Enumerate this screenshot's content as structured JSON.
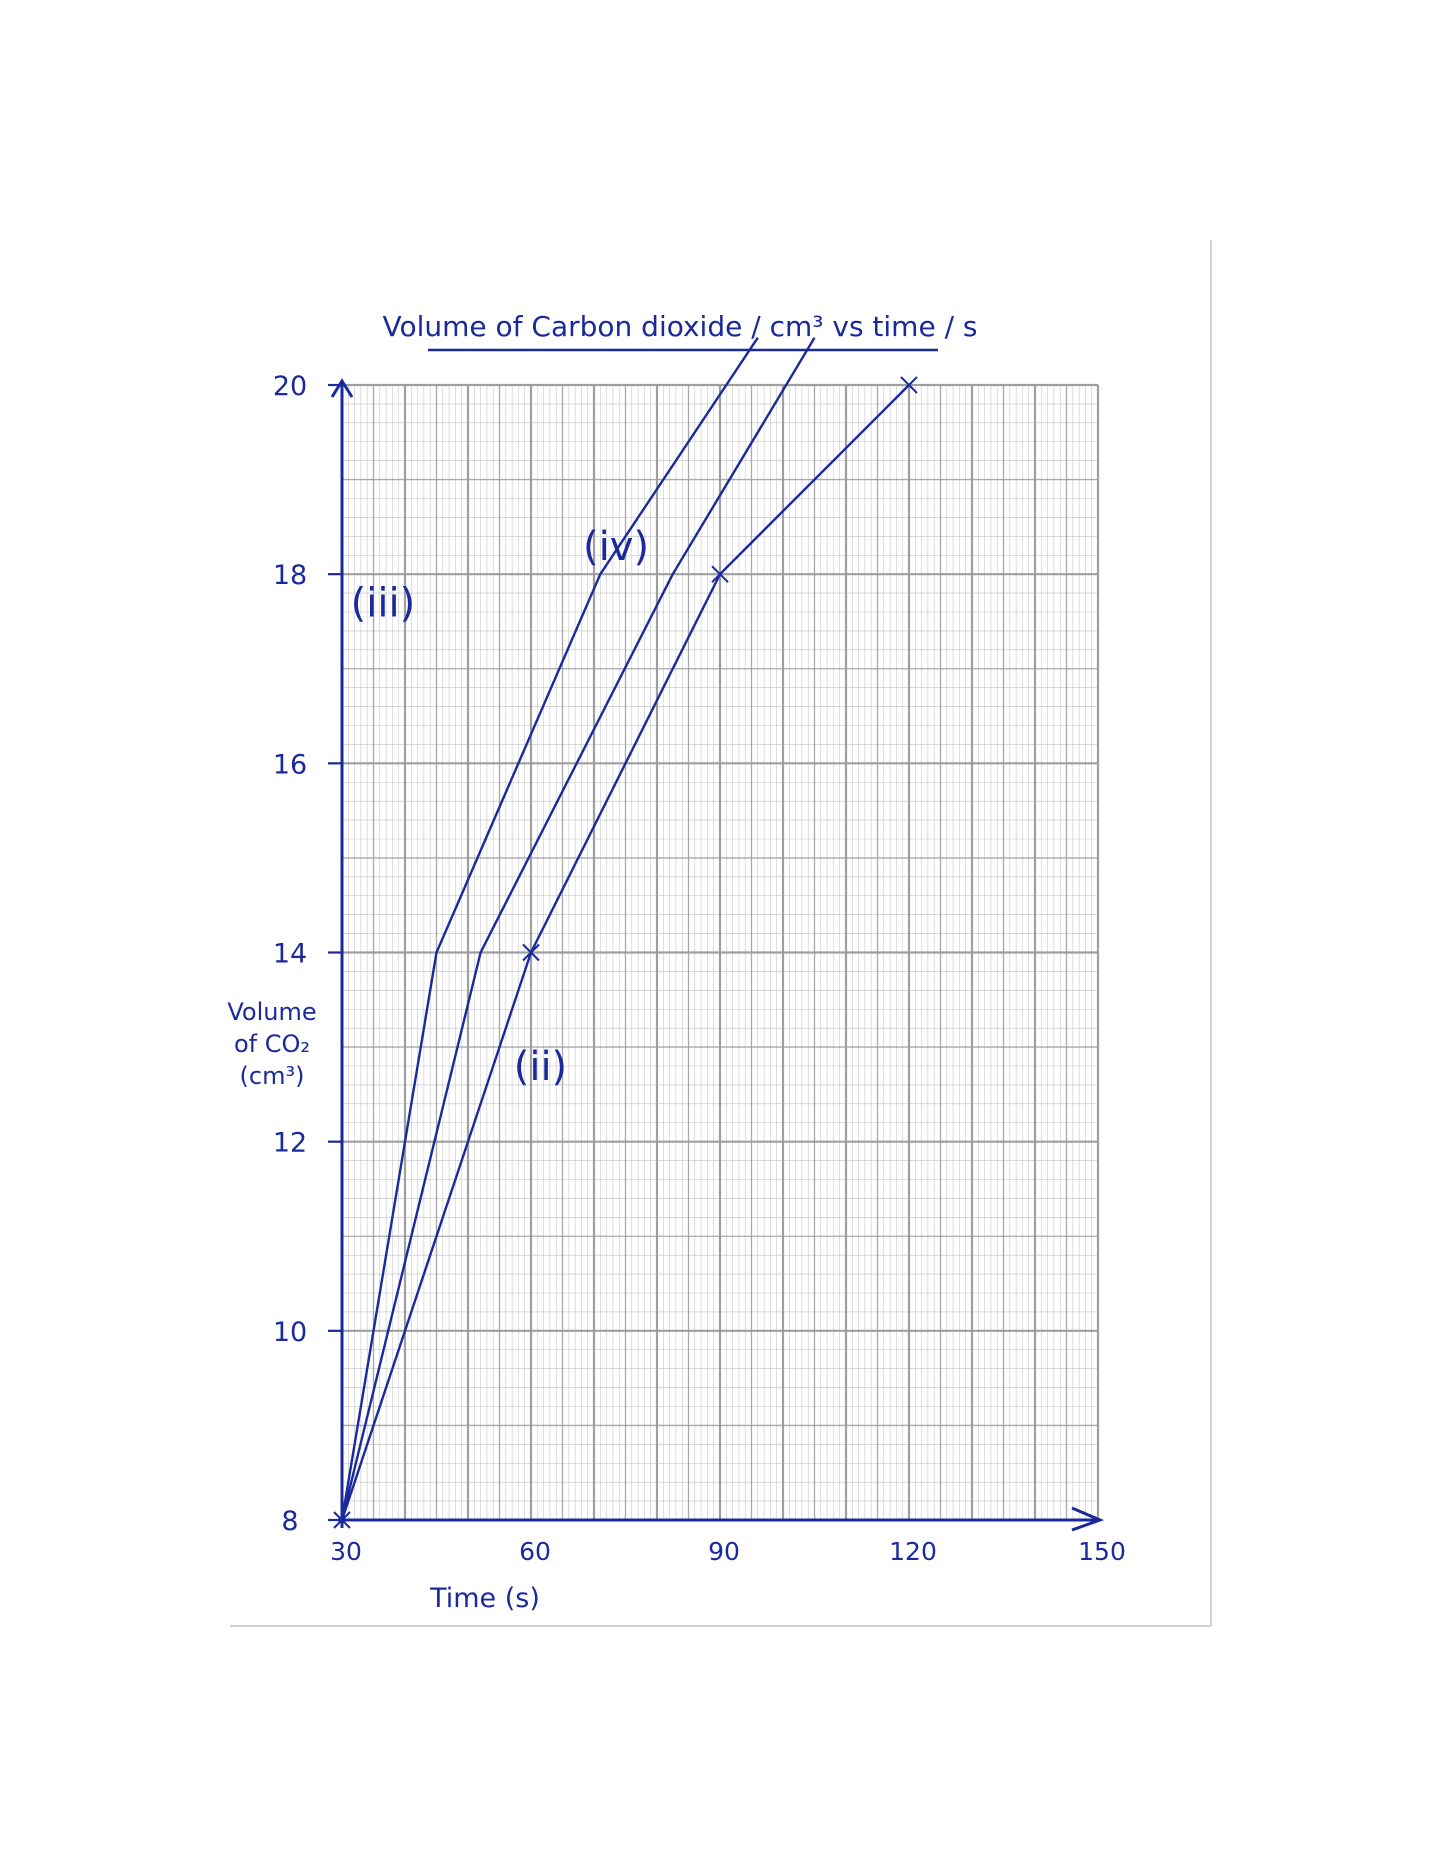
{
  "chart_data": {
    "type": "line",
    "title": "Volume of Carbon dioxide / cm³ vs time / s",
    "xlabel": "Time (s)",
    "ylabel": [
      "Volume",
      "of CO₂",
      "(cm³)"
    ],
    "xlim": [
      30,
      150
    ],
    "ylim": [
      8,
      20
    ],
    "x_ticks": [
      "30",
      "60",
      "90",
      "120",
      "150"
    ],
    "y_ticks": [
      "8",
      "10",
      "12",
      "14",
      "16",
      "18",
      "20"
    ],
    "grid": true,
    "ink_color": "#1a2a9c",
    "grid_color": "#9a9a9a",
    "series": [
      {
        "name": "(iii)",
        "points": [
          [
            30,
            8
          ],
          [
            45,
            14
          ],
          [
            71,
            18
          ],
          [
            96,
            20.5
          ]
        ]
      },
      {
        "name": "(iv)",
        "points": [
          [
            30,
            8
          ],
          [
            52,
            14
          ],
          [
            82.5,
            18
          ],
          [
            105,
            20.5
          ]
        ]
      },
      {
        "name": "(ii)",
        "points": [
          [
            30,
            8
          ],
          [
            60,
            14
          ],
          [
            90,
            18
          ],
          [
            120,
            20
          ]
        ],
        "markers": [
          [
            30,
            8
          ],
          [
            60,
            14
          ],
          [
            90,
            18
          ],
          [
            120,
            20
          ]
        ]
      }
    ]
  }
}
